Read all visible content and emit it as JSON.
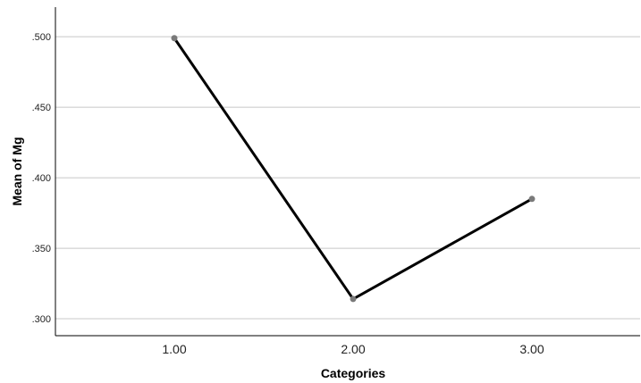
{
  "chart_data": {
    "type": "line",
    "title": "",
    "xlabel": "Categories",
    "ylabel": "Mean of Mg",
    "categories": [
      "1.00",
      "2.00",
      "3.00"
    ],
    "series": [
      {
        "values": [
          0.499,
          0.314,
          0.385
        ]
      }
    ],
    "ylim": [
      0.288,
      0.521
    ],
    "yticks": [
      0.5,
      0.45,
      0.4,
      0.35,
      0.3
    ],
    "ytick_labels": [
      ".500",
      ".450",
      ".400",
      ".350",
      ".300"
    ],
    "grid": "horizontal",
    "legend": "none",
    "colors": {
      "line": "#000000",
      "marker": "#7a7a7a",
      "grid": "#c8c8c8",
      "axis": "#000000"
    }
  }
}
